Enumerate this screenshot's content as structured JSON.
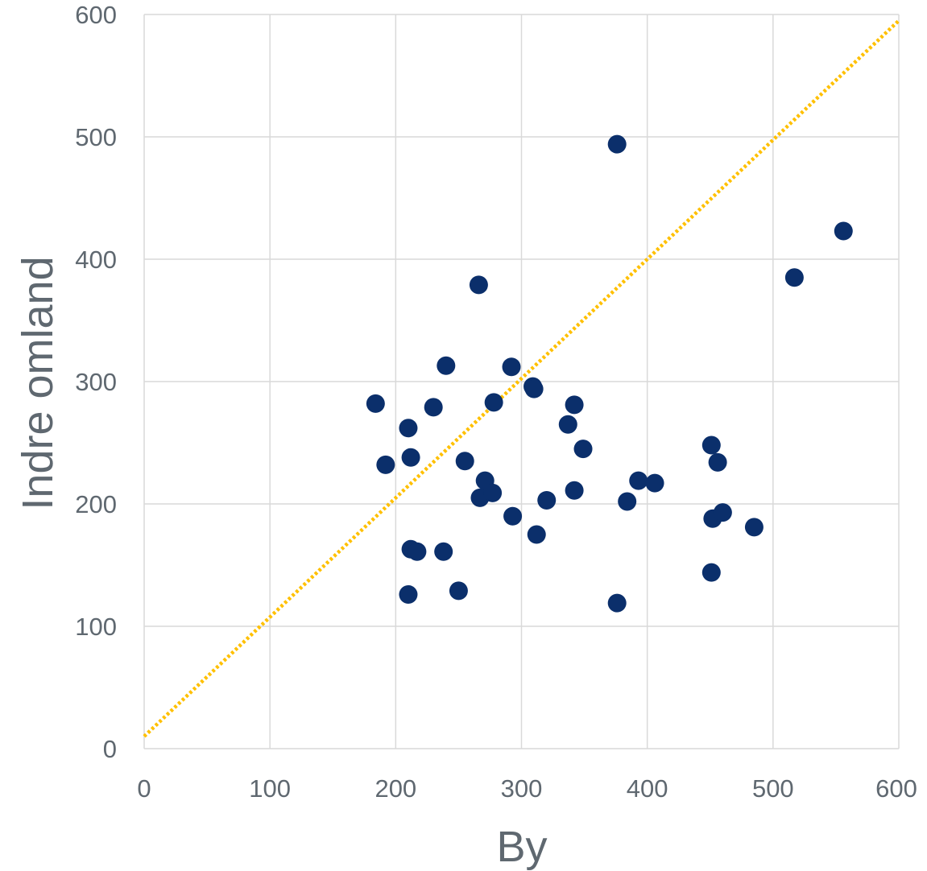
{
  "chart_data": {
    "type": "scatter",
    "title": "",
    "xlabel": "By",
    "ylabel": "Indre omland",
    "xlim": [
      0,
      600
    ],
    "ylim": [
      0,
      600
    ],
    "x_ticks": [
      0,
      100,
      200,
      300,
      400,
      500,
      600
    ],
    "y_ticks": [
      0,
      100,
      200,
      300,
      400,
      500,
      600
    ],
    "x_tick_labels": [
      "0",
      "100",
      "200",
      "300",
      "400",
      "500",
      "600"
    ],
    "y_tick_labels": [
      "0",
      "100",
      "200",
      "300",
      "400",
      "500",
      "600"
    ],
    "grid": true,
    "legend": "none",
    "colors": {
      "points": "#0b2f6b",
      "reference_line": "#ffc000",
      "grid": "#d9d9d9",
      "text": "#5f6870"
    },
    "reference_line": {
      "style": "dotted",
      "points": [
        [
          0,
          10
        ],
        [
          600,
          595
        ]
      ]
    },
    "series": [
      {
        "points": [
          [
            184,
            282
          ],
          [
            192,
            232
          ],
          [
            210,
            262
          ],
          [
            212,
            238
          ],
          [
            230,
            279
          ],
          [
            240,
            313
          ],
          [
            255,
            235
          ],
          [
            266,
            379
          ],
          [
            292,
            312
          ],
          [
            278,
            283
          ],
          [
            309,
            296
          ],
          [
            310,
            294
          ],
          [
            271,
            219
          ],
          [
            267,
            205
          ],
          [
            277,
            209
          ],
          [
            293,
            190
          ],
          [
            312,
            175
          ],
          [
            320,
            203
          ],
          [
            337,
            265
          ],
          [
            342,
            281
          ],
          [
            349,
            245
          ],
          [
            342,
            211
          ],
          [
            376,
            494
          ],
          [
            384,
            202
          ],
          [
            393,
            219
          ],
          [
            406,
            217
          ],
          [
            376,
            119
          ],
          [
            212,
            163
          ],
          [
            217,
            161
          ],
          [
            238,
            161
          ],
          [
            210,
            126
          ],
          [
            250,
            129
          ],
          [
            451,
            248
          ],
          [
            456,
            234
          ],
          [
            452,
            188
          ],
          [
            460,
            193
          ],
          [
            485,
            181
          ],
          [
            451,
            144
          ],
          [
            517,
            385
          ],
          [
            556,
            423
          ]
        ]
      }
    ]
  }
}
